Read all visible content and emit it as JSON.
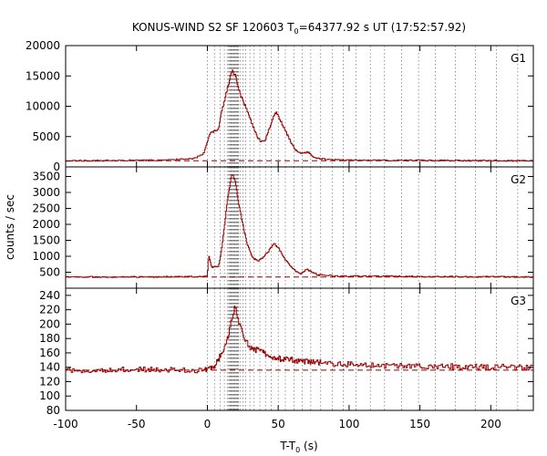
{
  "chart_data": {
    "type": "line",
    "title": {
      "prefix": "KONUS-WIND S2 SF 120603 T",
      "sub": "0",
      "suffix": "=64377.92 s UT (17:52:57.92)"
    },
    "xlabel": {
      "prefix": "T-T",
      "sub": "0",
      "suffix": " (s)"
    },
    "ylabel": "counts / sec",
    "xlim": [
      -100,
      230
    ],
    "x_ticks": [
      -100,
      -50,
      0,
      50,
      100,
      150,
      200
    ],
    "curve_color": "#990000",
    "background_line_style": "dashed",
    "vline_style": "dotted",
    "vlines": [
      0,
      5,
      9,
      12,
      14,
      15,
      15.5,
      16,
      16.5,
      17,
      17.5,
      18,
      18.5,
      19,
      19.5,
      20,
      20.5,
      21,
      21.5,
      22,
      23,
      25,
      27,
      30,
      33,
      37,
      41,
      45,
      50,
      55,
      61,
      67,
      73,
      80,
      88,
      96,
      105,
      115,
      125,
      137,
      149,
      161,
      175,
      189,
      204,
      219
    ],
    "panels": [
      {
        "name": "G1",
        "ylim": [
          0,
          20000
        ],
        "y_ticks": [
          0,
          5000,
          10000,
          15000,
          20000
        ],
        "background": 1000,
        "noise": 100,
        "profile": [
          [
            -100,
            1000
          ],
          [
            -30,
            1100
          ],
          [
            -10,
            1400
          ],
          [
            -3,
            2000
          ],
          [
            0,
            4000
          ],
          [
            2,
            5500
          ],
          [
            8,
            6200
          ],
          [
            10,
            9000
          ],
          [
            13,
            11800
          ],
          [
            15,
            13700
          ],
          [
            17,
            15300
          ],
          [
            18,
            15800
          ],
          [
            19,
            15300
          ],
          [
            20,
            15500
          ],
          [
            21,
            14000
          ],
          [
            23,
            12200
          ],
          [
            25,
            11000
          ],
          [
            28,
            9500
          ],
          [
            31,
            7500
          ],
          [
            35,
            5000
          ],
          [
            38,
            4100
          ],
          [
            41,
            4500
          ],
          [
            44,
            6500
          ],
          [
            47,
            8500
          ],
          [
            49,
            8900
          ],
          [
            51,
            8000
          ],
          [
            54,
            6500
          ],
          [
            58,
            4500
          ],
          [
            62,
            2800
          ],
          [
            66,
            2200
          ],
          [
            70,
            2400
          ],
          [
            72,
            2300
          ],
          [
            76,
            1500
          ],
          [
            85,
            1200
          ],
          [
            100,
            1100
          ],
          [
            230,
            1000
          ]
        ]
      },
      {
        "name": "G2",
        "ylim": [
          0,
          3800
        ],
        "y_ticks": [
          500,
          1000,
          1500,
          2000,
          2500,
          3000,
          3500
        ],
        "background": 350,
        "noise": 20,
        "profile": [
          [
            -100,
            350
          ],
          [
            -5,
            360
          ],
          [
            0,
            400
          ],
          [
            1,
            1050
          ],
          [
            3,
            650
          ],
          [
            8,
            700
          ],
          [
            10,
            1200
          ],
          [
            13,
            2300
          ],
          [
            15,
            3000
          ],
          [
            17,
            3500
          ],
          [
            18,
            3550
          ],
          [
            19,
            3400
          ],
          [
            20,
            3300
          ],
          [
            22,
            2700
          ],
          [
            25,
            2000
          ],
          [
            28,
            1400
          ],
          [
            32,
            950
          ],
          [
            36,
            850
          ],
          [
            40,
            1000
          ],
          [
            44,
            1200
          ],
          [
            47,
            1400
          ],
          [
            50,
            1280
          ],
          [
            54,
            950
          ],
          [
            58,
            720
          ],
          [
            62,
            550
          ],
          [
            66,
            440
          ],
          [
            70,
            600
          ],
          [
            73,
            520
          ],
          [
            78,
            420
          ],
          [
            90,
            380
          ],
          [
            230,
            350
          ]
        ]
      },
      {
        "name": "G3",
        "ylim": [
          80,
          250
        ],
        "y_ticks": [
          80,
          100,
          120,
          140,
          160,
          180,
          200,
          220,
          240
        ],
        "background": 136,
        "noise": 4,
        "profile": [
          [
            -100,
            136
          ],
          [
            -60,
            137
          ],
          [
            0,
            136
          ],
          [
            5,
            142
          ],
          [
            12,
            165
          ],
          [
            15,
            185
          ],
          [
            18,
            215
          ],
          [
            20,
            225
          ],
          [
            22,
            205
          ],
          [
            25,
            185
          ],
          [
            30,
            168
          ],
          [
            40,
            160
          ],
          [
            50,
            152
          ],
          [
            70,
            148
          ],
          [
            90,
            145
          ],
          [
            120,
            142
          ],
          [
            230,
            140
          ]
        ]
      }
    ]
  }
}
